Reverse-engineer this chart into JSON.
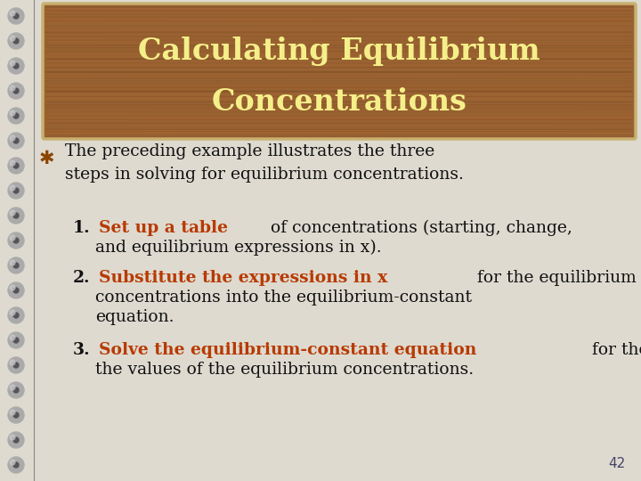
{
  "title_line1": "Calculating Equilibrium",
  "title_line2": "Concentrations",
  "title_color": "#f5ef8a",
  "title_bg_dark": "#7a4a1e",
  "title_bg_mid": "#9b6332",
  "title_border_color": "#c8b070",
  "slide_bg_color": "#dedad0",
  "bullet_symbol_color": "#8B4500",
  "bullet_text_color": "#111111",
  "bold_color": "#b83a00",
  "text_color": "#111111",
  "num_color": "#111111",
  "page_number": "42",
  "page_number_color": "#444466",
  "spiral_outer": "#aaaaaa",
  "spiral_inner": "#555555",
  "spiral_ring_color": "#888888"
}
